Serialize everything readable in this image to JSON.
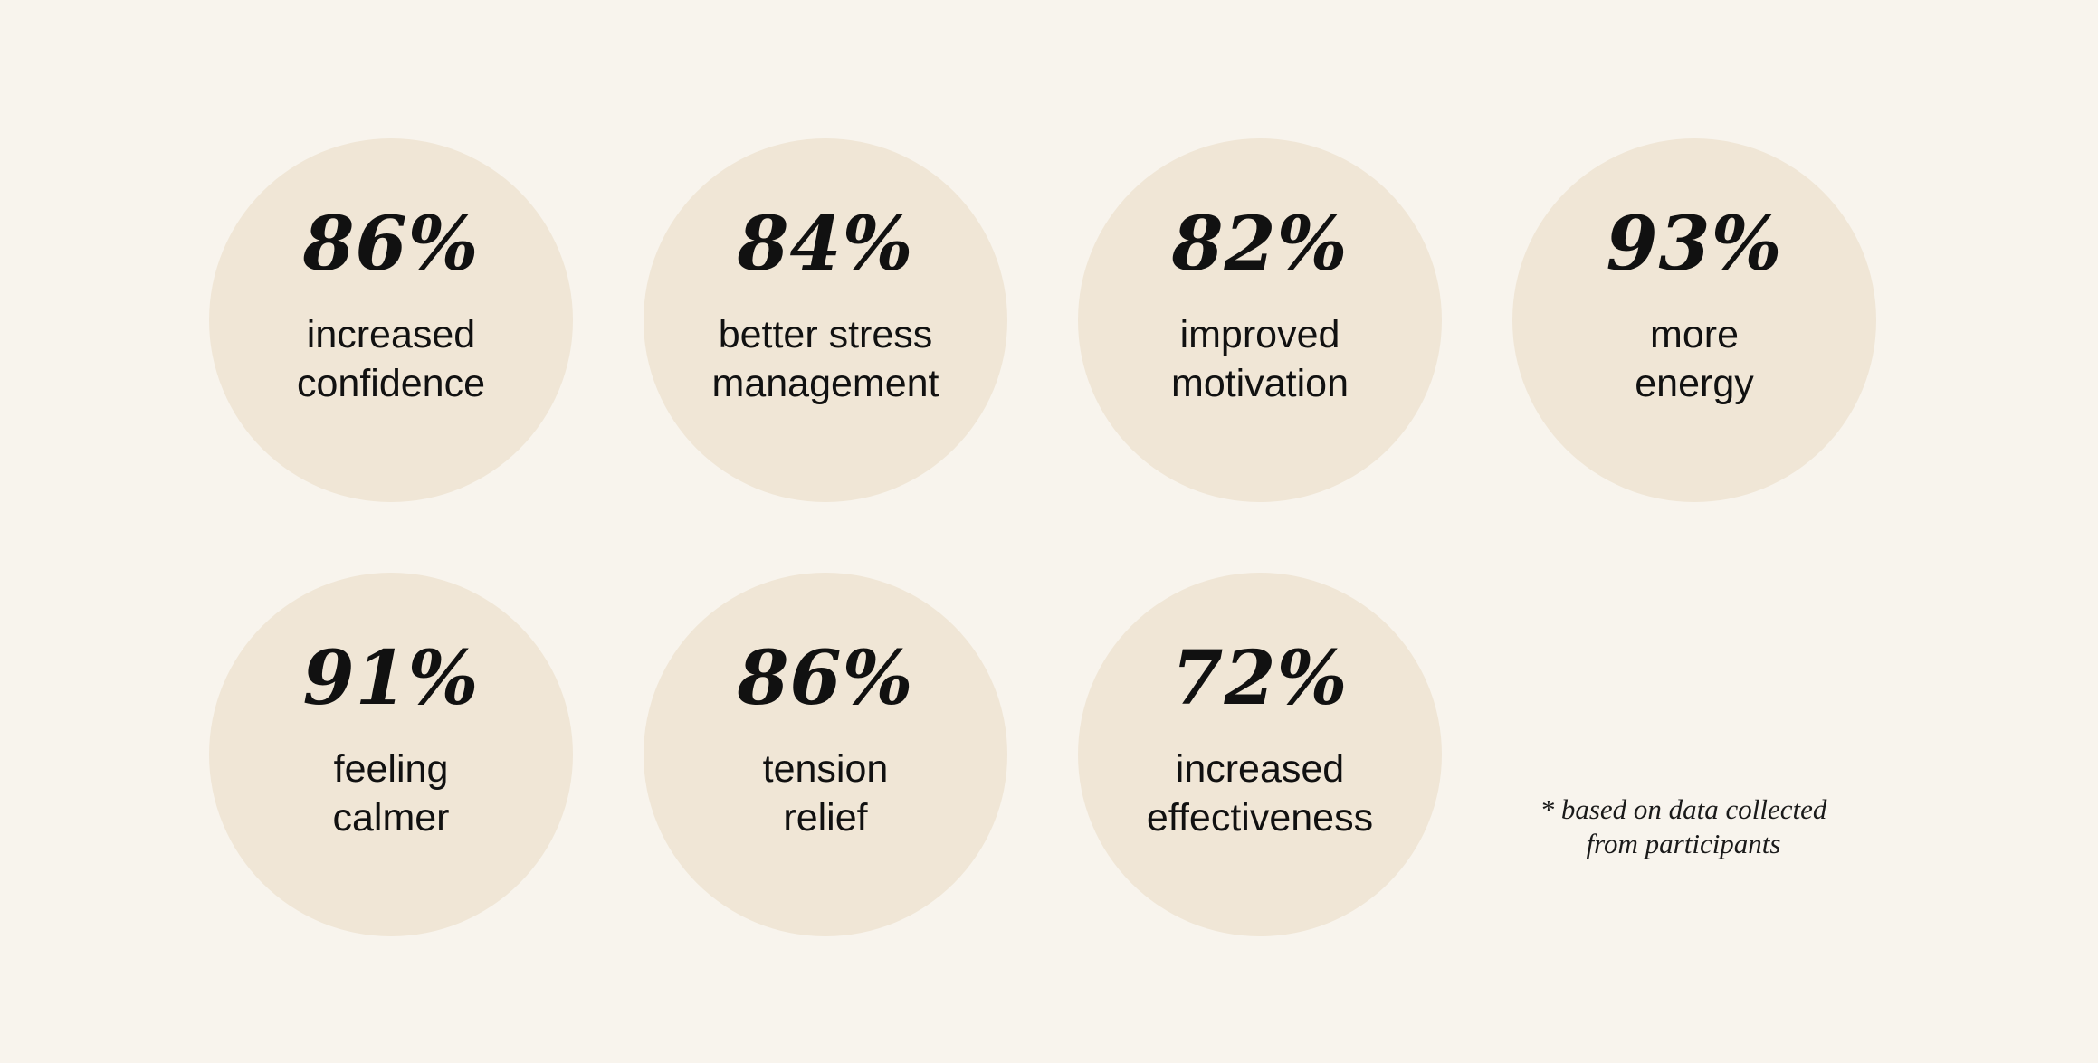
{
  "stats": [
    {
      "value": "86%",
      "label_line1": "increased",
      "label_line2": "confidence"
    },
    {
      "value": "84%",
      "label_line1": "better stress",
      "label_line2": "management"
    },
    {
      "value": "82%",
      "label_line1": "improved",
      "label_line2": "motivation"
    },
    {
      "value": "93%",
      "label_line1": "more",
      "label_line2": "energy"
    },
    {
      "value": "91%",
      "label_line1": "feeling",
      "label_line2": "calmer"
    },
    {
      "value": "86%",
      "label_line1": "tension",
      "label_line2": "relief"
    },
    {
      "value": "72%",
      "label_line1": "increased",
      "label_line2": "effectiveness"
    }
  ],
  "footnote": {
    "line1": "* based on data collected",
    "line2": "from participants"
  },
  "colors": {
    "background": "#f8f4ed",
    "circle": "#f0e6d6",
    "text": "#111111"
  }
}
